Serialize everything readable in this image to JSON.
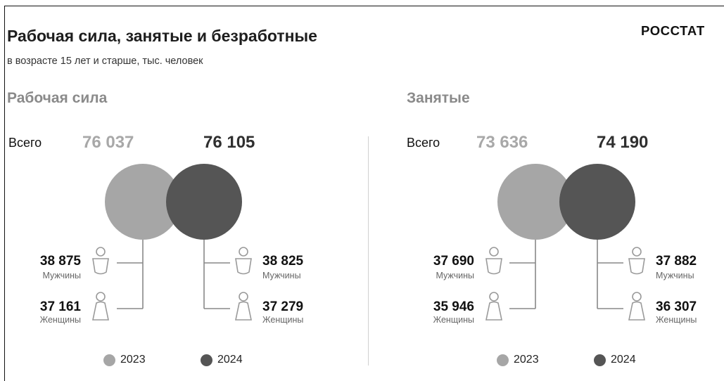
{
  "header": {
    "title": "Рабочая сила, занятые и безработные",
    "subtitle": "в возрасте 15 лет и старше, тыс. человек",
    "brand": "РОССТАТ"
  },
  "colors": {
    "year_2023": "#a6a6a6",
    "year_2024": "#555555",
    "connector": "#888888",
    "icon_stroke": "#9a9a9a"
  },
  "chart_data": [
    {
      "type": "bubble",
      "title": "Рабочая сила",
      "total_label": "Всего",
      "categories": [
        "2023",
        "2024"
      ],
      "totals": [
        76037,
        76105
      ],
      "totals_text": [
        "76 037",
        "76 105"
      ],
      "series": [
        {
          "name": "Мужчины",
          "values": [
            38875,
            38825
          ],
          "text": [
            "38 875",
            "38 825"
          ]
        },
        {
          "name": "Женщины",
          "values": [
            37161,
            37279
          ],
          "text": [
            "37 161",
            "37 279"
          ]
        }
      ]
    },
    {
      "type": "bubble",
      "title": "Занятые",
      "total_label": "Всего",
      "categories": [
        "2023",
        "2024"
      ],
      "totals": [
        73636,
        74190
      ],
      "totals_text": [
        "73 636",
        "74 190"
      ],
      "series": [
        {
          "name": "Мужчины",
          "values": [
            37690,
            37882
          ],
          "text": [
            "37 690",
            "37 882"
          ]
        },
        {
          "name": "Женщины",
          "values": [
            35946,
            36307
          ],
          "text": [
            "35 946",
            "36 307"
          ]
        }
      ]
    }
  ],
  "legend": [
    {
      "label": "2023",
      "icon": "circle-icon"
    },
    {
      "label": "2024",
      "icon": "circle-icon"
    }
  ]
}
